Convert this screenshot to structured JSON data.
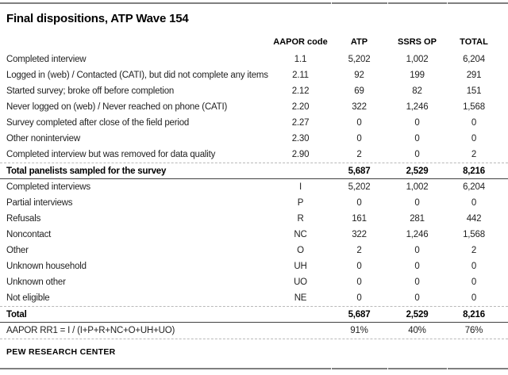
{
  "title": "Final dispositions, ATP Wave 154",
  "columns": {
    "label": "",
    "code": "AAPOR code",
    "atp": "ATP",
    "ssrs": "SSRS OP",
    "total": "TOTAL"
  },
  "rows": [
    {
      "label": "Completed interview",
      "code": "1.1",
      "atp": "5,202",
      "ssrs": "1,002",
      "total": "6,204",
      "style": "normal"
    },
    {
      "label": "Logged in (web) / Contacted (CATI), but did not complete any items",
      "code": "2.11",
      "atp": "92",
      "ssrs": "199",
      "total": "291",
      "style": "normal"
    },
    {
      "label": "Started survey; broke off before completion",
      "code": "2.12",
      "atp": "69",
      "ssrs": "82",
      "total": "151",
      "style": "normal"
    },
    {
      "label": "Never logged on (web) / Never reached on phone (CATI)",
      "code": "2.20",
      "atp": "322",
      "ssrs": "1,246",
      "total": "1,568",
      "style": "normal"
    },
    {
      "label": "Survey completed after close of the field period",
      "code": "2.27",
      "atp": "0",
      "ssrs": "0",
      "total": "0",
      "style": "normal"
    },
    {
      "label": "Other noninterview",
      "code": "2.30",
      "atp": "0",
      "ssrs": "0",
      "total": "0",
      "style": "normal"
    },
    {
      "label": "Completed interview but was removed for data quality",
      "code": "2.90",
      "atp": "2",
      "ssrs": "0",
      "total": "2",
      "style": "normal"
    },
    {
      "label": "Total panelists sampled for the survey",
      "code": "",
      "atp": "5,687",
      "ssrs": "2,529",
      "total": "8,216",
      "style": "total"
    },
    {
      "label": "Completed interviews",
      "code": "I",
      "atp": "5,202",
      "ssrs": "1,002",
      "total": "6,204",
      "style": "normal"
    },
    {
      "label": "Partial interviews",
      "code": "P",
      "atp": "0",
      "ssrs": "0",
      "total": "0",
      "style": "normal"
    },
    {
      "label": "Refusals",
      "code": "R",
      "atp": "161",
      "ssrs": "281",
      "total": "442",
      "style": "normal"
    },
    {
      "label": "Noncontact",
      "code": "NC",
      "atp": "322",
      "ssrs": "1,246",
      "total": "1,568",
      "style": "normal"
    },
    {
      "label": "Other",
      "code": "O",
      "atp": "2",
      "ssrs": "0",
      "total": "2",
      "style": "normal"
    },
    {
      "label": "Unknown household",
      "code": "UH",
      "atp": "0",
      "ssrs": "0",
      "total": "0",
      "style": "normal"
    },
    {
      "label": "Unknown other",
      "code": "UO",
      "atp": "0",
      "ssrs": "0",
      "total": "0",
      "style": "normal"
    },
    {
      "label": "Not eligible",
      "code": "NE",
      "atp": "0",
      "ssrs": "0",
      "total": "0",
      "style": "normal"
    },
    {
      "label": "Total",
      "code": "",
      "atp": "5,687",
      "ssrs": "2,529",
      "total": "8,216",
      "style": "total"
    },
    {
      "label": "AAPOR RR1 = I / (I+P+R+NC+O+UH+UO)",
      "code": "",
      "atp": "91%",
      "ssrs": "40%",
      "total": "76%",
      "style": "rate"
    }
  ],
  "footer": {
    "brand": "PEW RESEARCH CENTER"
  },
  "colors": {
    "rule_gray": "#7f7f7f",
    "dashed_separator": "#b9b9b9",
    "section_line": "#404040",
    "text": "#222222"
  }
}
